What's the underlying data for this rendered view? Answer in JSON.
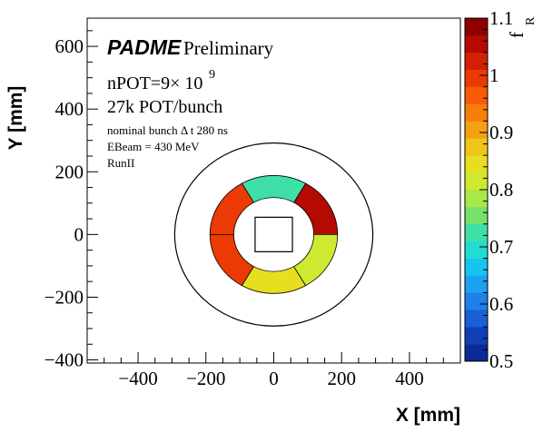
{
  "chart_data": {
    "type": "heatmap",
    "title": "",
    "xlabel": "X [mm]",
    "ylabel": "Y [mm]",
    "xlim": [
      -550,
      550
    ],
    "ylim": [
      -410,
      690
    ],
    "x_ticks": [
      -400,
      -200,
      0,
      200,
      400
    ],
    "y_ticks": [
      -400,
      -200,
      0,
      200,
      400,
      600
    ],
    "x_tick_labels": [
      "−400",
      "−200",
      "0",
      "200",
      "400"
    ],
    "y_tick_labels": [
      "−400",
      "−200",
      "0",
      "200",
      "400",
      "600"
    ],
    "grid": false,
    "annotations": {
      "brand": "PADME",
      "brand_suffix": "Preliminary",
      "npot_prefix": "nPOT=9× 10",
      "npot_exponent": "9",
      "pot_per_bunch": "27k POT/bunch",
      "bunch_length": "nominal bunch Δ t 280 ns",
      "ebeam": "EBeam = 430 MeV",
      "run": "RunII"
    },
    "geometry": {
      "outer_circle_radius_mm": 292,
      "ring_inner_radius_mm": 118,
      "ring_outer_radius_mm": 188,
      "central_square_half_width_mm": 55
    },
    "segments": [
      {
        "name": "top-right",
        "start_deg": 0,
        "end_deg": 60,
        "f_R": 1.05
      },
      {
        "name": "top",
        "start_deg": 60,
        "end_deg": 120,
        "f_R": 0.72
      },
      {
        "name": "top-left",
        "start_deg": 120,
        "end_deg": 180,
        "f_R": 1.0
      },
      {
        "name": "bottom-left",
        "start_deg": 180,
        "end_deg": 240,
        "f_R": 1.01
      },
      {
        "name": "bottom",
        "start_deg": 240,
        "end_deg": 300,
        "f_R": 0.86
      },
      {
        "name": "bottom-right",
        "start_deg": 300,
        "end_deg": 360,
        "f_R": 0.81
      }
    ],
    "colorbar": {
      "label": "f",
      "label_subscript": "R",
      "min": 0.5,
      "max": 1.1,
      "ticks": [
        0.5,
        0.6,
        0.7,
        0.8,
        0.9,
        1.0,
        1.1
      ],
      "tick_labels": [
        "0.5",
        "0.6",
        "0.7",
        "0.8",
        "0.9",
        "1",
        "1.1"
      ],
      "colors": [
        "#0a2a96",
        "#0e3fb4",
        "#1a5fd6",
        "#1e80e8",
        "#1aa2ee",
        "#18c4ee",
        "#22dcd2",
        "#3fe0a8",
        "#78e06c",
        "#a8e848",
        "#cfe830",
        "#e8de20",
        "#f0c418",
        "#f5a012",
        "#f87e0c",
        "#f85a06",
        "#ec3a04",
        "#d42002",
        "#b40a00",
        "#8c0000"
      ]
    }
  }
}
